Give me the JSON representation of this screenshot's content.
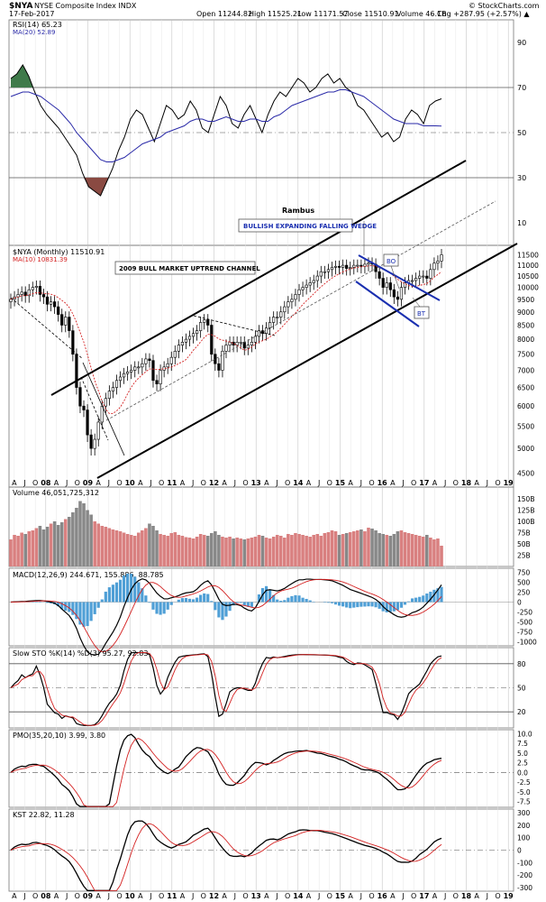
{
  "header": {
    "symbol": "$NYA",
    "name": "NYSE Composite Index INDX",
    "date": "17-Feb-2017",
    "open": "Open 11244.82",
    "high": "High 11525.21",
    "low": "Low 11171.57",
    "close": "Close 11510.91",
    "volume": "Volume 46.1B",
    "change": "Chg +287.95 (+2.57%) ▲",
    "copyright": "© StockCharts.com"
  },
  "colors": {
    "price_up": "#000000",
    "ma_red": "#d42020",
    "rsi_blue": "#2a2aa8",
    "vol_red": "#d98080",
    "vol_gray": "#888888",
    "hist_blue": "#4f9fd6",
    "rsi_green": "#3f7a4a",
    "rsi_brown": "#8a4a42",
    "annot_blue": "#1a2fb0"
  },
  "chart_data": [
    {
      "panel": "rsi",
      "type": "line",
      "label": "RSI(14) 65.23",
      "ma_label": "MA(20) 52.89",
      "yticks": [
        10,
        30,
        50,
        70,
        90
      ],
      "ylim": [
        0,
        100
      ],
      "values": [
        74,
        76,
        80,
        75,
        68,
        62,
        58,
        55,
        52,
        48,
        44,
        40,
        32,
        26,
        24,
        22,
        28,
        34,
        42,
        48,
        56,
        60,
        58,
        52,
        46,
        54,
        62,
        60,
        56,
        58,
        64,
        60,
        52,
        50,
        58,
        66,
        62,
        54,
        52,
        58,
        62,
        56,
        50,
        58,
        64,
        68,
        66,
        70,
        74,
        72,
        68,
        70,
        74,
        76,
        72,
        74,
        70,
        68,
        62,
        60,
        56,
        52,
        48,
        50,
        46,
        48,
        56,
        60,
        58,
        54,
        62,
        64,
        65
      ],
      "ma_values": [
        66,
        67,
        68,
        68,
        67,
        66,
        64,
        62,
        60,
        57,
        54,
        50,
        47,
        44,
        41,
        38,
        37,
        37,
        38,
        39,
        41,
        43,
        45,
        46,
        47,
        48,
        50,
        51,
        52,
        53,
        55,
        56,
        56,
        55,
        55,
        56,
        57,
        56,
        55,
        55,
        56,
        56,
        55,
        55,
        57,
        58,
        60,
        62,
        63,
        64,
        65,
        66,
        67,
        68,
        68,
        69,
        69,
        68,
        67,
        66,
        64,
        62,
        60,
        58,
        56,
        55,
        54,
        54,
        54,
        53,
        53,
        53,
        52.89
      ]
    },
    {
      "panel": "price",
      "type": "candlestick",
      "label": "$NYA (Monthly) 11510.91",
      "ma_label": "MA(10) 10831.39",
      "ylim": [
        4300,
        11800
      ],
      "yticks": [
        4500,
        5000,
        5500,
        6000,
        6500,
        7000,
        7500,
        8000,
        8500,
        9000,
        9500,
        10000,
        10500,
        11000,
        11500
      ],
      "start": "2007-04",
      "months": 119,
      "closes": [
        9500,
        9600,
        9700,
        9800,
        9650,
        9900,
        10000,
        10050,
        9700,
        9600,
        9300,
        9400,
        9200,
        8900,
        8500,
        8800,
        8300,
        7500,
        6500,
        6000,
        5900,
        5300,
        5000,
        5200,
        5600,
        6000,
        6200,
        6400,
        6500,
        6700,
        6800,
        6900,
        6950,
        7000,
        7100,
        7100,
        7200,
        7350,
        7300,
        6700,
        6600,
        7000,
        7100,
        7200,
        7400,
        7600,
        7800,
        7900,
        8000,
        8100,
        8200,
        8300,
        8600,
        8700,
        8500,
        7500,
        7200,
        7000,
        7600,
        7800,
        7900,
        7800,
        7900,
        7900,
        7700,
        7800,
        7900,
        8100,
        8300,
        8200,
        8400,
        8600,
        8800,
        8800,
        9000,
        9200,
        9400,
        9500,
        9700,
        9900,
        10000,
        10100,
        10200,
        10300,
        10500,
        10700,
        10700,
        10800,
        10900,
        10950,
        10900,
        11000,
        10850,
        10900,
        11000,
        11000,
        10950,
        11050,
        11100,
        11050,
        10700,
        10400,
        10000,
        10200,
        9900,
        9600,
        9500,
        10000,
        10200,
        10300,
        10300,
        10400,
        10500,
        10500,
        10400,
        10800,
        11100,
        11200,
        11510
      ]
    },
    {
      "panel": "volume",
      "type": "bar",
      "label": "Volume 46,051,725,312",
      "yticks": [
        "25B",
        "50B",
        "75B",
        "100B",
        "125B",
        "150B"
      ],
      "unit": "B",
      "values": [
        60,
        70,
        68,
        75,
        72,
        78,
        80,
        85,
        90,
        82,
        88,
        95,
        100,
        92,
        98,
        105,
        110,
        120,
        130,
        145,
        140,
        125,
        115,
        100,
        95,
        90,
        88,
        85,
        82,
        80,
        78,
        75,
        72,
        70,
        68,
        75,
        80,
        85,
        95,
        90,
        80,
        72,
        70,
        68,
        74,
        76,
        70,
        68,
        65,
        64,
        62,
        66,
        72,
        70,
        68,
        74,
        78,
        70,
        66,
        64,
        66,
        62,
        64,
        62,
        60,
        62,
        64,
        66,
        70,
        68,
        64,
        62,
        66,
        70,
        68,
        64,
        72,
        70,
        74,
        72,
        70,
        68,
        66,
        70,
        72,
        68,
        74,
        76,
        80,
        78,
        70,
        72,
        74,
        76,
        78,
        80,
        82,
        78,
        86,
        84,
        80,
        74,
        72,
        70,
        68,
        72,
        78,
        80,
        76,
        74,
        72,
        70,
        68,
        66,
        70,
        64,
        60,
        62,
        46
      ]
    },
    {
      "panel": "macd",
      "type": "line",
      "label": "MACD(12,26,9) 244.671, 155.886, 88.785",
      "yticks": [
        -1000,
        -750,
        -500,
        -250,
        0,
        250,
        500,
        750
      ],
      "ylim": [
        -1100,
        850
      ]
    },
    {
      "panel": "sto",
      "type": "line",
      "label": "Slow STO %K(14) %D(3) 95.27, 92.83",
      "yticks": [
        20,
        50,
        80
      ],
      "ylim": [
        0,
        100
      ]
    },
    {
      "panel": "pmo",
      "type": "line",
      "label": "PMO(35,20,10) 3.99, 3.80",
      "yticks": [
        -7.5,
        -5.0,
        -2.5,
        0,
        2.5,
        5.0,
        7.5,
        10.0
      ],
      "ylim": [
        -9,
        11
      ]
    },
    {
      "panel": "kst",
      "type": "line",
      "label": "KST 22.82, 11.28",
      "yticks": [
        -300,
        -200,
        -100,
        0,
        100,
        200,
        300
      ],
      "ylim": [
        -330,
        330
      ]
    }
  ],
  "annotations": {
    "author": "Rambus",
    "wedge_title": "BULLISH EXPANDING FALLING WEDGE",
    "channel_title": "2009 BULL MARKET UPTREND CHANNEL",
    "bo": "BO",
    "bt": "BT"
  },
  "xaxis": {
    "labels": [
      "A",
      "J",
      "O",
      "08",
      "A",
      "J",
      "O",
      "09",
      "A",
      "J",
      "O",
      "10",
      "A",
      "J",
      "O",
      "11",
      "A",
      "J",
      "O",
      "12",
      "A",
      "J",
      "O",
      "13",
      "A",
      "J",
      "O",
      "14",
      "A",
      "J",
      "O",
      "15",
      "A",
      "J",
      "O",
      "16",
      "A",
      "J",
      "O",
      "17",
      "A",
      "J",
      "O",
      "18",
      "A",
      "J",
      "O",
      "19"
    ]
  }
}
